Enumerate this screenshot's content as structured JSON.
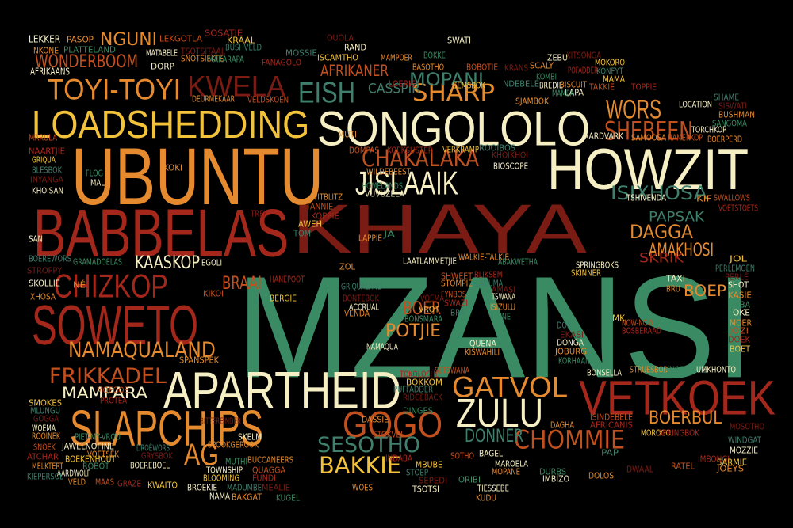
{
  "palette": {
    "background": "#000000",
    "red": "#a4271c",
    "dark_red": "#7a1c14",
    "orange": "#e58a2e",
    "dark_orange": "#c2501f",
    "yellow": "#f2c23b",
    "cream": "#f6efc4",
    "green": "#3a8a63",
    "teal": "#3f7f6c"
  },
  "words": [
    "MZANSI",
    "UBUNTU",
    "BABBELAS",
    "KHAYA",
    "HOWZIT",
    "LOADSHEDDING",
    "SONGOLOLO",
    "SOWETO",
    "APARTHEID",
    "VETKOEK",
    "SLAPCHIPS",
    "GOGO",
    "ZULU",
    "GATVOL",
    "CHIZKOP",
    "KWELA",
    "TOYI-TOYI",
    "EISH",
    "SHARP",
    "CHAKALAKA",
    "JISLAAIK",
    "NAMAQUALAND",
    "FRIKKADEL",
    "SESOTHO",
    "BAKKIE",
    "AG",
    "WORS",
    "SHEBEEN",
    "ISIXHOSA",
    "DAGGA",
    "CHOMMIE",
    "DONNER",
    "BOERBUL",
    "MAMPARA",
    "BRAAI",
    "KAASKOP",
    "AMAKHOSI",
    "POTJIE",
    "BOER",
    "PAPSAK",
    "SKRIK",
    "BOEP",
    "WONDERBOOM",
    "NGUNI",
    "MOPANI",
    "AFRIKANER",
    "CASSPIR",
    "LEKKER",
    "NKONE",
    "PLATTELAND",
    "AFRIKAANS",
    "PASOP",
    "LEKGOTLA",
    "SOSATIE",
    "KRAAL",
    "BUSHVELD",
    "TSOTSITAAL",
    "MATABELE",
    "SNOTSIEKTE",
    "MAKARAPA",
    "DORP",
    "DEURMEKAAR",
    "VELDSKOEN",
    "FANAGOLO",
    "ISCAMTHO",
    "MOSSIE",
    "OUOLA",
    "RAND",
    "MAMPOER",
    "BOKKE",
    "SWATI",
    "BASOTHO",
    "BOBOTIE",
    "LOERIE",
    "GEMSBOK",
    "NDEBELE",
    "KRANS",
    "ZEBU",
    "SCALY",
    "KOMBI",
    "BREDIE",
    "BISCUIT",
    "TAKKIE",
    "TOPPIE",
    "MAMA",
    "SHAME",
    "SISWATI",
    "LOCATION",
    "BUSHMAN",
    "SANGOMA",
    "TORCHKOP",
    "BOERPERD",
    "HAMERKOP",
    "POFADDER",
    "MOKORO",
    "KONFYT",
    "XITSONGA",
    "LAPA",
    "SJAMBOK",
    "MAMBA",
    "AARDVARK",
    "SAMOOSA",
    "MARULA",
    "NAARTJIE",
    "GRIQUA",
    "BLESBOK",
    "INYANGA",
    "KHOISAN",
    "KOKI",
    "FLOG",
    "MAL",
    "MUTI",
    "DOMPAS",
    "KOEKSUSTER",
    "VERKRAMP",
    "ROOIBOS",
    "KHOIKHOI",
    "BIOSCOPE",
    "WILDEBEEST",
    "HOMELANDS",
    "VUVUZELA",
    "WITBLITZ",
    "TANNIE",
    "KOPPIE",
    "AWEH",
    "TOM",
    "TREK",
    "SAN",
    "LAPPIE",
    "JA",
    "TSHIVENDA",
    "KIF",
    "SWALLOWS",
    "VOETSTOETS",
    "JOL",
    "PERLEMOEN",
    "PERLÉ",
    "SHOT",
    "KASIE",
    "ABBA",
    "OKE",
    "MOER",
    "JOZI",
    "DOEK",
    "BOET",
    "BOEREWORS",
    "STROPPY",
    "SKOLLIE",
    "XHOSA",
    "GRAMADOELAS",
    "EGOLI",
    "NÉ",
    "KIKOI",
    "HANEPOOT",
    "BERGIE",
    "GRIQUALAND",
    "BONTEBOK",
    "ACCRUAL",
    "VENDA",
    "BONSMARA",
    "NAMAQUA",
    "STOMPIE",
    "FYNBOS",
    "SWAZI",
    "VROT",
    "BRA",
    "VOEMA",
    "LAATLAMMETJIE",
    "WALKIE-TALKIE",
    "ABAKWETHA",
    "SPRINGBOKS",
    "ZOL",
    "SHWEET",
    "BLIKSEM",
    "SKINNER",
    "LADUMA",
    "AMASI",
    "TSWANA",
    "ISIZULU",
    "TUNE",
    "TAXI",
    "BRU",
    "NOW-NOW",
    "BOSBERAAD",
    "MK",
    "DOP",
    "EKASI",
    "DONGA",
    "JOBURG",
    "KORHAAN",
    "QUENA",
    "KISWAHILI",
    "SETSWANA",
    "TOKOLOSHE",
    "BOKKOM",
    "PUFFADDER",
    "RIDGEBACK",
    "BONSELLA",
    "STRUESBOB",
    "KNOBKIERIE",
    "UMKHONTO",
    "SPANSPEK",
    "MOEGOE",
    "PROTEA",
    "SMOKES",
    "MLUNGU",
    "GOGGA",
    "WOEMA",
    "ROOINEK",
    "PIET-MY-VROU",
    "JAWELNOFINE",
    "VOETSEK",
    "SNOEK",
    "ATCHAR",
    "BOEKENHOUT",
    "DROËWORS",
    "GRYSBOK",
    "BOEREBOEL",
    "MELKTERT",
    "ROBOT",
    "AARDWOLF",
    "VELD",
    "MAAS",
    "GRAZE",
    "KWAITO",
    "KIEPERSOL",
    "BITTEREINDER",
    "SKELM",
    "SPOOKGEROOK",
    "MUTHI",
    "TOWNSHIP",
    "BUCCANEERS",
    "QUAGGA",
    "FUNDI",
    "BLOOMING",
    "MADUMBE",
    "MEALIE",
    "BROEKIE",
    "BAKGAT",
    "KUGEL",
    "NAMA",
    "DASSIE",
    "STOKVEL",
    "INDABA",
    "MBUBE",
    "STOEP",
    "SEPEDI",
    "TSOTSI",
    "WOES",
    "DINGES",
    "BAGEL",
    "DAGHA",
    "ISINDEBELE",
    "AFRICANIS",
    "MOROGO",
    "PAP",
    "DWAAL",
    "MAROELA",
    "MOPANE",
    "DURBS",
    "IMBIZO",
    "DOLOS",
    "RATEL",
    "IMBONGI",
    "SARMIE",
    "WINDGAT",
    "MOSOTHO",
    "MOZZIE",
    "JOEYS",
    "ORIBI",
    "TIESSEBE",
    "KUDU",
    "SOTHO",
    "SPRINGBOK"
  ]
}
